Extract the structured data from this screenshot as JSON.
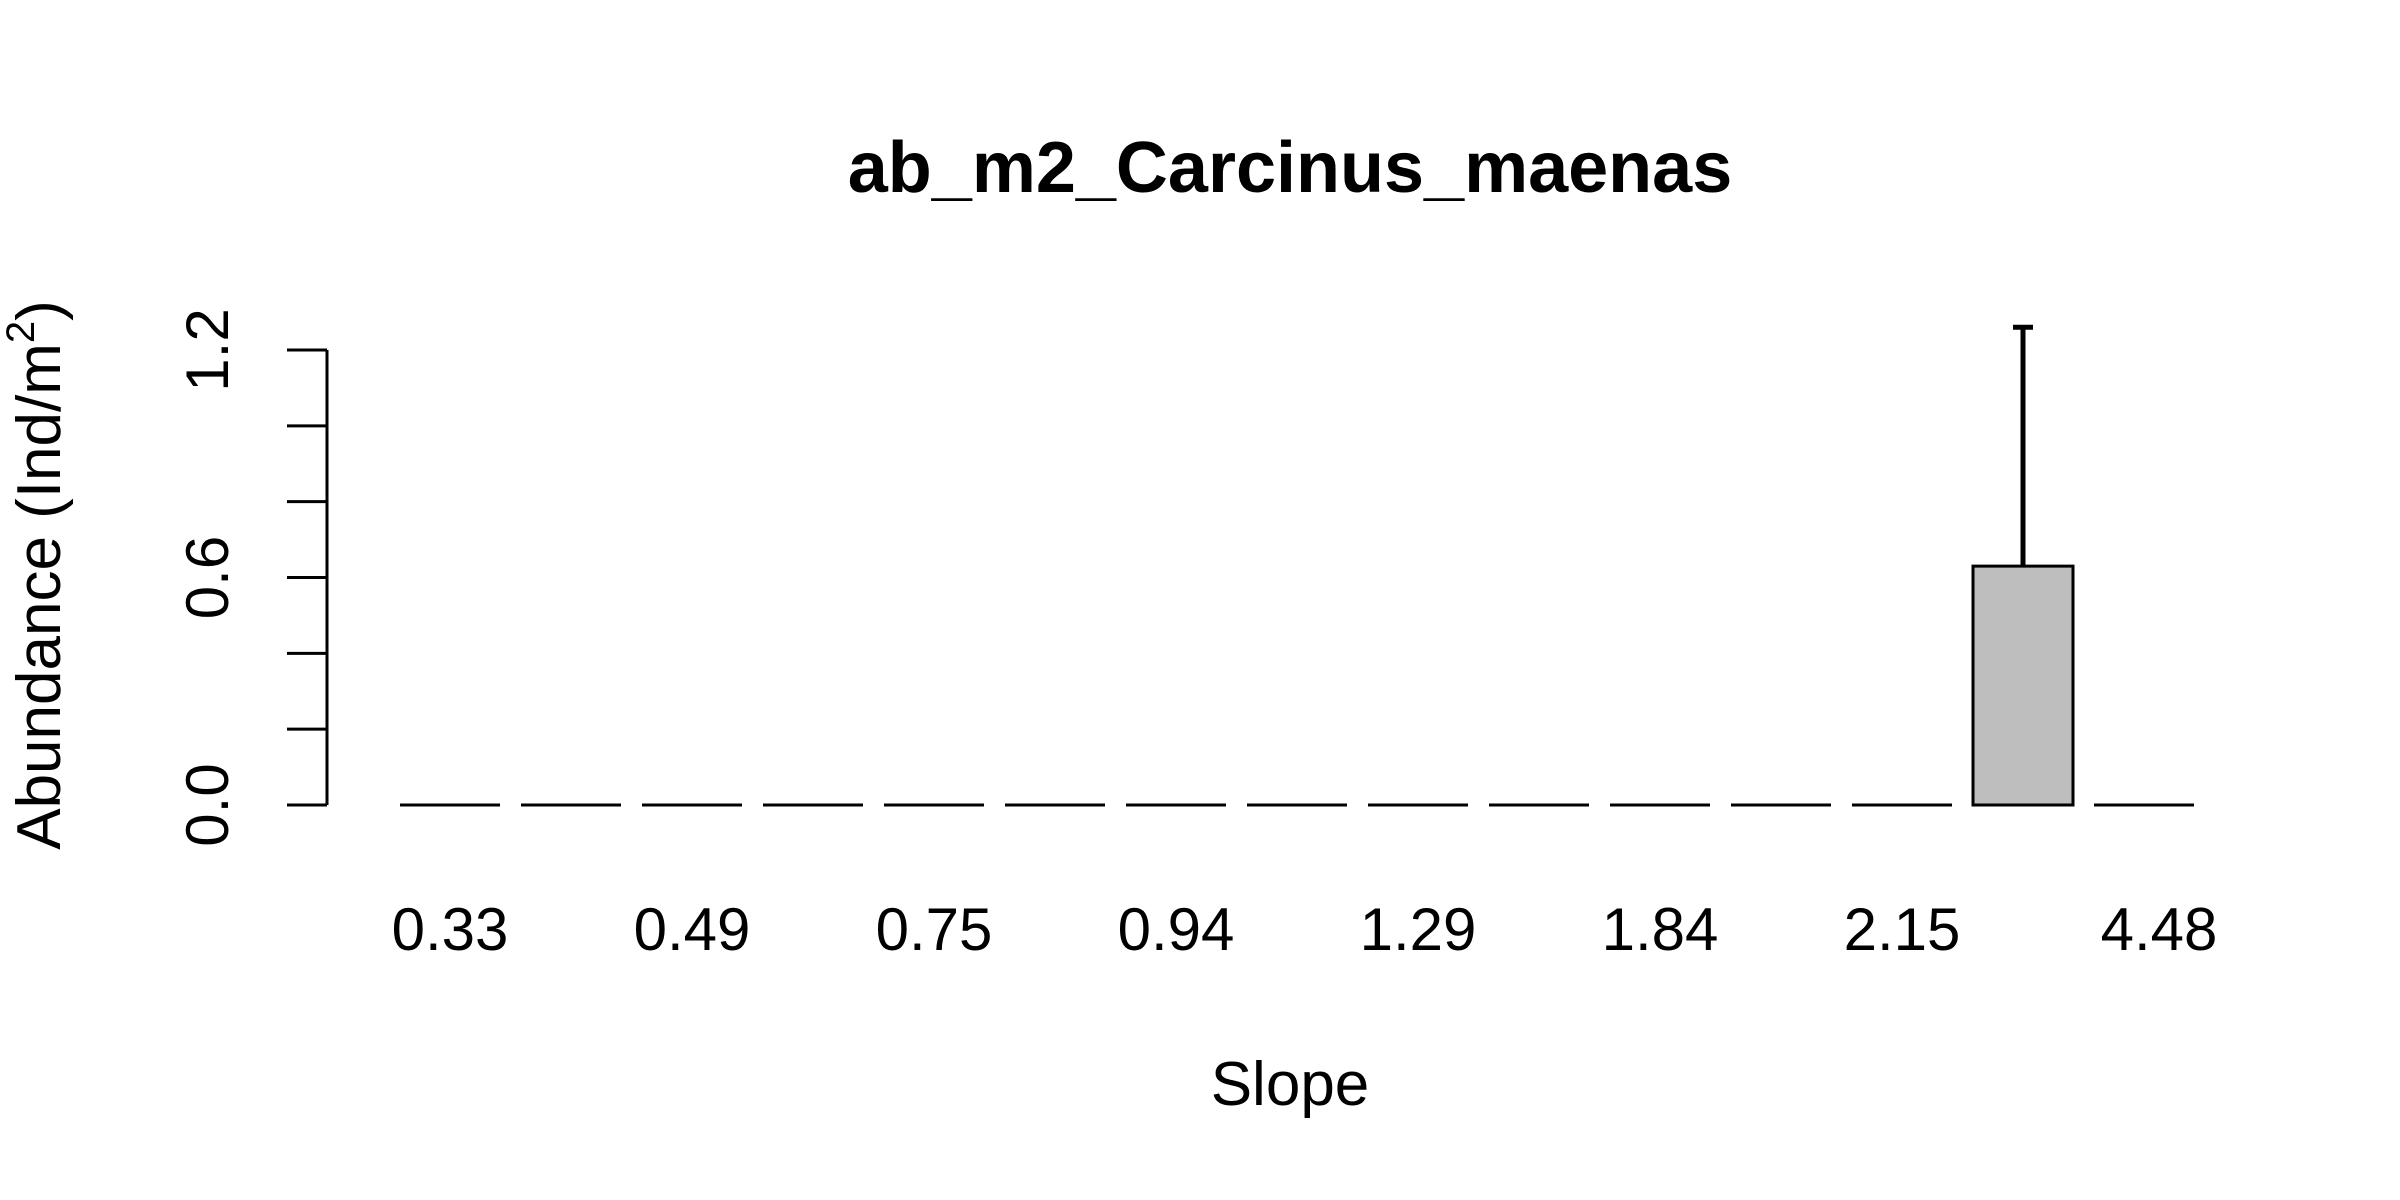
{
  "chart_data": {
    "type": "bar",
    "title": "ab_m2_Carcinus_maenas",
    "xlabel": "Slope",
    "ylabel": "Abundance (Ind/m",
    "ylabel_superscript": "2",
    "ylabel_suffix": ")",
    "ylim": [
      0,
      1.2
    ],
    "yticks": [
      0.0,
      0.2,
      0.4,
      0.6,
      0.8,
      1.0,
      1.2
    ],
    "yticks_labeled": [
      "0.0",
      "0.6",
      "1.2"
    ],
    "categories": [
      "0.33",
      "",
      "0.49",
      "",
      "0.75",
      "",
      "0.94",
      "",
      "1.29",
      "",
      "1.84",
      "",
      "2.15",
      "",
      "4.48"
    ],
    "values": [
      0,
      0,
      0,
      0,
      0,
      0,
      0,
      0,
      0,
      0,
      0,
      0,
      0,
      0.63,
      0
    ],
    "error_upper": [
      0,
      0,
      0,
      0,
      0,
      0,
      0,
      0,
      0,
      0,
      0,
      0,
      0,
      1.26,
      0
    ],
    "bar_color": "#bebebe",
    "grid": false,
    "legend": false
  }
}
